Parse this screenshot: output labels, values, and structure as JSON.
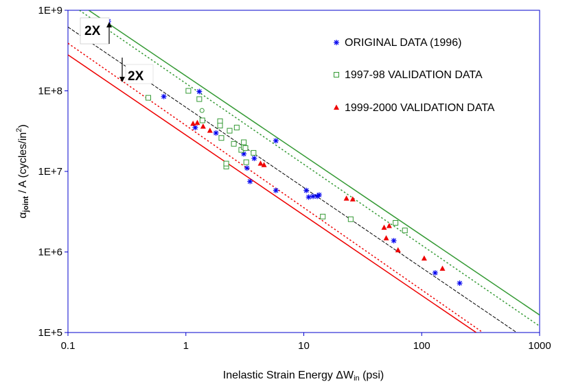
{
  "chart_data": {
    "type": "scatter",
    "title": "",
    "xlabel": "Inelastic Strain Energy ΔW",
    "xlabel_sub": "in",
    "xlabel_unit": " (psi)",
    "ylabel_alpha": "α",
    "ylabel_sub": "joint",
    "ylabel_mid": " / A  (cycles/in",
    "ylabel_sup": "2",
    "ylabel_end": ")",
    "xscale": "log",
    "yscale": "log",
    "xlim": [
      0.1,
      1000
    ],
    "ylim": [
      100000,
      1000000000
    ],
    "x_ticks": [
      0.1,
      1,
      10,
      100,
      1000
    ],
    "x_tick_labels": [
      "0.1",
      "1",
      "10",
      "100",
      "1000"
    ],
    "y_ticks": [
      100000,
      1000000,
      10000000,
      100000000,
      1000000000
    ],
    "y_tick_labels": [
      "1E+5",
      "1E+6",
      "1E+7",
      "1E+8",
      "1E+9"
    ],
    "grid": false,
    "legend_position": "top-right",
    "colors": {
      "original": "#0000ee",
      "validation_9798": "#339933",
      "validation_9900": "#ee0000",
      "median_line": "#000000",
      "upper_bound": "#339933",
      "lower_bound": "#ee0000",
      "axis": "#0000cc"
    },
    "series": [
      {
        "name": "ORIGINAL DATA (1996)",
        "marker": "asterisk",
        "color": "#0000ee",
        "points": [
          [
            0.22,
            730000000
          ],
          [
            0.65,
            85000000
          ],
          [
            1.2,
            35000000
          ],
          [
            1.3,
            98000000
          ],
          [
            1.8,
            30000000
          ],
          [
            3.1,
            16500000
          ],
          [
            3.3,
            11000000
          ],
          [
            3.5,
            7500000
          ],
          [
            3.8,
            14500000
          ],
          [
            5.8,
            24000000
          ],
          [
            5.8,
            5800000
          ],
          [
            10.5,
            5800000
          ],
          [
            11,
            4800000
          ],
          [
            12,
            4900000
          ],
          [
            13,
            4900000
          ],
          [
            13.5,
            5100000
          ],
          [
            58,
            1380000
          ],
          [
            130,
            550000
          ],
          [
            210,
            410000
          ]
        ]
      },
      {
        "name": "1997-98 VALIDATION DATA",
        "marker": "open-square",
        "color": "#339933",
        "points": [
          [
            0.48,
            82000000
          ],
          [
            1.05,
            100000000
          ],
          [
            1.3,
            79000000
          ],
          [
            1.38,
            43000000
          ],
          [
            1.95,
            42000000
          ],
          [
            1.95,
            37000000
          ],
          [
            2.0,
            26000000
          ],
          [
            2.2,
            11500000
          ],
          [
            2.2,
            12500000
          ],
          [
            2.35,
            32000000
          ],
          [
            2.55,
            22000000
          ],
          [
            2.7,
            35000000
          ],
          [
            2.95,
            18500000
          ],
          [
            3.1,
            20000000
          ],
          [
            3.1,
            23000000
          ],
          [
            3.2,
            19500000
          ],
          [
            3.25,
            13000000
          ],
          [
            3.75,
            17000000
          ],
          [
            14.5,
            2750000
          ],
          [
            25,
            2550000
          ],
          [
            60,
            2300000
          ],
          [
            72,
            1850000
          ]
        ]
      },
      {
        "name": "1999-2000 VALIDATION DATA",
        "marker": "filled-triangle",
        "color": "#ee0000",
        "points": [
          [
            1.15,
            39000000
          ],
          [
            1.25,
            40000000
          ],
          [
            1.4,
            36000000
          ],
          [
            1.6,
            32000000
          ],
          [
            4.3,
            12500000
          ],
          [
            4.6,
            12000000
          ],
          [
            23,
            4600000
          ],
          [
            26,
            4500000
          ],
          [
            48,
            2000000
          ],
          [
            50,
            1480000
          ],
          [
            53,
            2100000
          ],
          [
            63,
            1050000
          ],
          [
            105,
            830000
          ],
          [
            150,
            620000
          ]
        ]
      }
    ],
    "extra_points": [
      {
        "marker": "open-circle",
        "color": "#339933",
        "x": 1.37,
        "y": 57000000
      }
    ],
    "lines": [
      {
        "role": "median",
        "color": "#000000",
        "style": "dashed-fine",
        "from": [
          0.1,
          620000000
        ],
        "to": [
          640,
          100000
        ]
      },
      {
        "role": "upper-2x",
        "color": "#339933",
        "style": "solid",
        "from": [
          0.15,
          1000000000
        ],
        "to": [
          1000,
          165000
        ]
      },
      {
        "role": "upper-1.5x",
        "color": "#339933",
        "style": "dotted",
        "from": [
          0.125,
          1000000000
        ],
        "to": [
          1000,
          120000
        ]
      },
      {
        "role": "lower-1.5x",
        "color": "#ee0000",
        "style": "dotted",
        "from": [
          0.1,
          390000000
        ],
        "to": [
          330,
          100000
        ]
      },
      {
        "role": "lower-2x",
        "color": "#ee0000",
        "style": "solid",
        "from": [
          0.1,
          280000000
        ],
        "to": [
          290,
          100000
        ]
      }
    ],
    "annotations": [
      {
        "text": "2X",
        "role": "upper-factor"
      },
      {
        "text": "2X",
        "role": "lower-factor"
      }
    ]
  }
}
